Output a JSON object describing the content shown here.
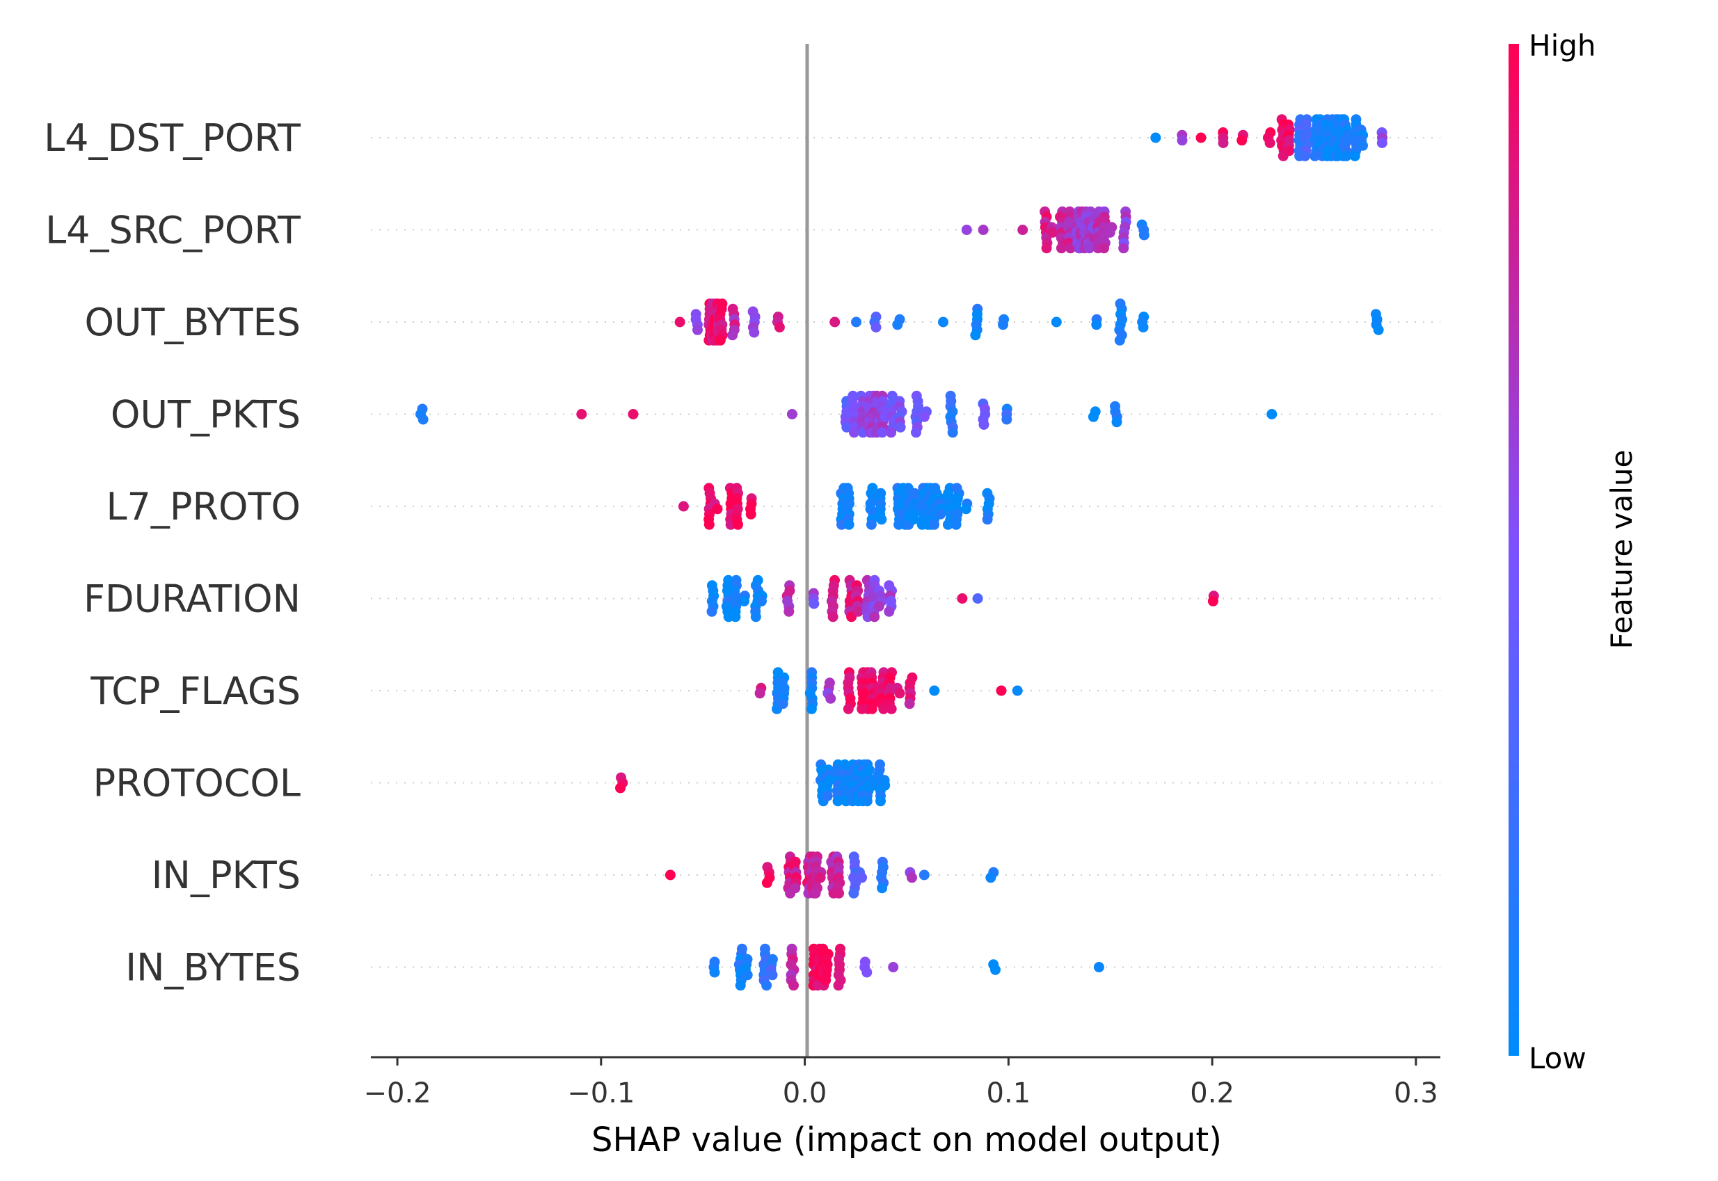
{
  "chart_data": {
    "type": "scatter",
    "subtype": "shap-beeswarm",
    "title": "",
    "xlabel": "SHAP value (impact on model output)",
    "ylabel": "",
    "xlim": [
      -0.213,
      0.312
    ],
    "xticks": [
      -0.2,
      -0.1,
      0.0,
      0.1,
      0.2,
      0.3
    ],
    "xtick_labels": [
      "−0.2",
      "−0.1",
      "0.0",
      "0.1",
      "0.2",
      "0.3"
    ],
    "zero_line": true,
    "colorbar": {
      "label": "Feature value",
      "high_label": "High",
      "low_label": "Low",
      "low_color": "#008bfb",
      "mid_color": "#7c52ff",
      "high_color": "#ff0052"
    },
    "features": [
      {
        "name": "L4_DST_PORT",
        "groups": [
          {
            "x": 0.172,
            "n": 1,
            "spread": 0.0,
            "fv": 0.05
          },
          {
            "x": 0.185,
            "n": 2,
            "spread": 0.001,
            "fv": 0.55
          },
          {
            "x": 0.195,
            "n": 1,
            "spread": 0.0,
            "fv": 0.95
          },
          {
            "x": 0.205,
            "n": 3,
            "spread": 0.002,
            "fv": 0.9
          },
          {
            "x": 0.215,
            "n": 2,
            "spread": 0.001,
            "fv": 0.95
          },
          {
            "x": 0.228,
            "n": 3,
            "spread": 0.002,
            "fv": 0.95
          },
          {
            "x": 0.236,
            "n": 14,
            "spread": 0.003,
            "fv": 0.95
          },
          {
            "x": 0.246,
            "n": 18,
            "spread": 0.003,
            "fv": 0.25
          },
          {
            "x": 0.255,
            "n": 30,
            "spread": 0.004,
            "fv": 0.05
          },
          {
            "x": 0.263,
            "n": 42,
            "spread": 0.004,
            "fv": 0.05
          },
          {
            "x": 0.272,
            "n": 12,
            "spread": 0.003,
            "fv": 0.05
          },
          {
            "x": 0.283,
            "n": 3,
            "spread": 0.002,
            "fv": 0.55
          }
        ]
      },
      {
        "name": "L4_SRC_PORT",
        "groups": [
          {
            "x": 0.08,
            "n": 1,
            "spread": 0.0,
            "fv": 0.7
          },
          {
            "x": 0.088,
            "n": 1,
            "spread": 0.0,
            "fv": 0.7
          },
          {
            "x": 0.107,
            "n": 1,
            "spread": 0.0,
            "fv": 0.8
          },
          {
            "x": 0.12,
            "n": 10,
            "spread": 0.003,
            "fv": 0.85
          },
          {
            "x": 0.13,
            "n": 20,
            "spread": 0.004,
            "fv": 0.75
          },
          {
            "x": 0.138,
            "n": 36,
            "spread": 0.004,
            "fv": 0.65
          },
          {
            "x": 0.147,
            "n": 18,
            "spread": 0.003,
            "fv": 0.7
          },
          {
            "x": 0.157,
            "n": 8,
            "spread": 0.003,
            "fv": 0.6
          },
          {
            "x": 0.166,
            "n": 3,
            "spread": 0.002,
            "fv": 0.2
          }
        ]
      },
      {
        "name": "OUT_BYTES",
        "groups": [
          {
            "x": -0.062,
            "n": 1,
            "spread": 0.0,
            "fv": 0.95
          },
          {
            "x": -0.053,
            "n": 4,
            "spread": 0.002,
            "fv": 0.55
          },
          {
            "x": -0.044,
            "n": 40,
            "spread": 0.003,
            "fv": 0.9
          },
          {
            "x": -0.035,
            "n": 6,
            "spread": 0.003,
            "fv": 0.75
          },
          {
            "x": -0.025,
            "n": 5,
            "spread": 0.003,
            "fv": 0.6
          },
          {
            "x": -0.013,
            "n": 3,
            "spread": 0.002,
            "fv": 0.85
          },
          {
            "x": 0.015,
            "n": 1,
            "spread": 0.0,
            "fv": 0.95
          },
          {
            "x": 0.025,
            "n": 1,
            "spread": 0.0,
            "fv": 0.05
          },
          {
            "x": 0.035,
            "n": 3,
            "spread": 0.002,
            "fv": 0.3
          },
          {
            "x": 0.046,
            "n": 2,
            "spread": 0.001,
            "fv": 0.05
          },
          {
            "x": 0.068,
            "n": 1,
            "spread": 0.0,
            "fv": 0.05
          },
          {
            "x": 0.084,
            "n": 6,
            "spread": 0.003,
            "fv": 0.05
          },
          {
            "x": 0.097,
            "n": 2,
            "spread": 0.001,
            "fv": 0.05
          },
          {
            "x": 0.124,
            "n": 1,
            "spread": 0.0,
            "fv": 0.05
          },
          {
            "x": 0.143,
            "n": 2,
            "spread": 0.001,
            "fv": 0.05
          },
          {
            "x": 0.155,
            "n": 8,
            "spread": 0.003,
            "fv": 0.05
          },
          {
            "x": 0.166,
            "n": 3,
            "spread": 0.002,
            "fv": 0.05
          },
          {
            "x": 0.281,
            "n": 4,
            "spread": 0.001,
            "fv": 0.05
          }
        ]
      },
      {
        "name": "OUT_PKTS",
        "groups": [
          {
            "x": -0.188,
            "n": 3,
            "spread": 0.002,
            "fv": 0.05
          },
          {
            "x": -0.11,
            "n": 1,
            "spread": 0.0,
            "fv": 0.95
          },
          {
            "x": -0.084,
            "n": 1,
            "spread": 0.0,
            "fv": 0.95
          },
          {
            "x": -0.006,
            "n": 1,
            "spread": 0.0,
            "fv": 0.65
          },
          {
            "x": 0.02,
            "n": 6,
            "spread": 0.003,
            "fv": 0.4
          },
          {
            "x": 0.028,
            "n": 22,
            "spread": 0.004,
            "fv": 0.55
          },
          {
            "x": 0.036,
            "n": 34,
            "spread": 0.004,
            "fv": 0.6
          },
          {
            "x": 0.045,
            "n": 14,
            "spread": 0.004,
            "fv": 0.5
          },
          {
            "x": 0.057,
            "n": 10,
            "spread": 0.004,
            "fv": 0.45
          },
          {
            "x": 0.072,
            "n": 8,
            "spread": 0.004,
            "fv": 0.2
          },
          {
            "x": 0.088,
            "n": 5,
            "spread": 0.003,
            "fv": 0.4
          },
          {
            "x": 0.099,
            "n": 3,
            "spread": 0.002,
            "fv": 0.2
          },
          {
            "x": 0.142,
            "n": 2,
            "spread": 0.001,
            "fv": 0.05
          },
          {
            "x": 0.153,
            "n": 4,
            "spread": 0.002,
            "fv": 0.05
          },
          {
            "x": 0.23,
            "n": 1,
            "spread": 0.0,
            "fv": 0.05
          }
        ]
      },
      {
        "name": "L7_PROTO",
        "groups": [
          {
            "x": -0.059,
            "n": 1,
            "spread": 0.0,
            "fv": 0.95
          },
          {
            "x": -0.045,
            "n": 10,
            "spread": 0.003,
            "fv": 0.95
          },
          {
            "x": -0.035,
            "n": 16,
            "spread": 0.003,
            "fv": 0.95
          },
          {
            "x": -0.026,
            "n": 4,
            "spread": 0.002,
            "fv": 0.95
          },
          {
            "x": 0.02,
            "n": 16,
            "spread": 0.003,
            "fv": 0.05
          },
          {
            "x": 0.035,
            "n": 14,
            "spread": 0.004,
            "fv": 0.05
          },
          {
            "x": 0.05,
            "n": 30,
            "spread": 0.004,
            "fv": 0.05
          },
          {
            "x": 0.062,
            "n": 36,
            "spread": 0.004,
            "fv": 0.05
          },
          {
            "x": 0.075,
            "n": 18,
            "spread": 0.004,
            "fv": 0.05
          },
          {
            "x": 0.09,
            "n": 6,
            "spread": 0.003,
            "fv": 0.05
          }
        ]
      },
      {
        "name": "FDURATION",
        "groups": [
          {
            "x": -0.045,
            "n": 6,
            "spread": 0.003,
            "fv": 0.05
          },
          {
            "x": -0.034,
            "n": 18,
            "spread": 0.004,
            "fv": 0.05
          },
          {
            "x": -0.022,
            "n": 10,
            "spread": 0.003,
            "fv": 0.05
          },
          {
            "x": -0.008,
            "n": 6,
            "spread": 0.003,
            "fv": 0.75
          },
          {
            "x": 0.005,
            "n": 3,
            "spread": 0.002,
            "fv": 0.55
          },
          {
            "x": 0.014,
            "n": 8,
            "spread": 0.003,
            "fv": 0.85
          },
          {
            "x": 0.024,
            "n": 14,
            "spread": 0.003,
            "fv": 0.85
          },
          {
            "x": 0.034,
            "n": 20,
            "spread": 0.003,
            "fv": 0.6
          },
          {
            "x": 0.042,
            "n": 6,
            "spread": 0.002,
            "fv": 0.6
          },
          {
            "x": 0.077,
            "n": 1,
            "spread": 0.0,
            "fv": 0.95
          },
          {
            "x": 0.085,
            "n": 1,
            "spread": 0.0,
            "fv": 0.4
          },
          {
            "x": 0.2,
            "n": 2,
            "spread": 0.001,
            "fv": 0.95
          }
        ]
      },
      {
        "name": "TCP_FLAGS",
        "groups": [
          {
            "x": -0.022,
            "n": 2,
            "spread": 0.001,
            "fv": 0.9
          },
          {
            "x": -0.012,
            "n": 14,
            "spread": 0.003,
            "fv": 0.05
          },
          {
            "x": 0.003,
            "n": 8,
            "spread": 0.003,
            "fv": 0.1
          },
          {
            "x": 0.012,
            "n": 4,
            "spread": 0.002,
            "fv": 0.6
          },
          {
            "x": 0.022,
            "n": 8,
            "spread": 0.003,
            "fv": 0.9
          },
          {
            "x": 0.032,
            "n": 26,
            "spread": 0.004,
            "fv": 0.95
          },
          {
            "x": 0.042,
            "n": 18,
            "spread": 0.004,
            "fv": 0.95
          },
          {
            "x": 0.052,
            "n": 6,
            "spread": 0.003,
            "fv": 0.85
          },
          {
            "x": 0.064,
            "n": 1,
            "spread": 0.0,
            "fv": 0.05
          },
          {
            "x": 0.097,
            "n": 1,
            "spread": 0.0,
            "fv": 0.95
          },
          {
            "x": 0.104,
            "n": 1,
            "spread": 0.0,
            "fv": 0.05
          }
        ]
      },
      {
        "name": "PROTOCOL",
        "groups": [
          {
            "x": -0.09,
            "n": 3,
            "spread": 0.004,
            "fv": 0.95
          },
          {
            "x": 0.01,
            "n": 14,
            "spread": 0.003,
            "fv": 0.05
          },
          {
            "x": 0.02,
            "n": 24,
            "spread": 0.004,
            "fv": 0.05
          },
          {
            "x": 0.03,
            "n": 26,
            "spread": 0.004,
            "fv": 0.05
          },
          {
            "x": 0.038,
            "n": 10,
            "spread": 0.003,
            "fv": 0.05
          }
        ]
      },
      {
        "name": "IN_PKTS",
        "groups": [
          {
            "x": -0.066,
            "n": 1,
            "spread": 0.0,
            "fv": 0.95
          },
          {
            "x": -0.018,
            "n": 4,
            "spread": 0.002,
            "fv": 0.95
          },
          {
            "x": -0.006,
            "n": 14,
            "spread": 0.003,
            "fv": 0.85
          },
          {
            "x": 0.005,
            "n": 26,
            "spread": 0.003,
            "fv": 0.8
          },
          {
            "x": 0.015,
            "n": 16,
            "spread": 0.003,
            "fv": 0.75
          },
          {
            "x": 0.026,
            "n": 10,
            "spread": 0.003,
            "fv": 0.35
          },
          {
            "x": 0.038,
            "n": 6,
            "spread": 0.003,
            "fv": 0.15
          },
          {
            "x": 0.052,
            "n": 2,
            "spread": 0.002,
            "fv": 0.6
          },
          {
            "x": 0.059,
            "n": 1,
            "spread": 0.0,
            "fv": 0.05
          },
          {
            "x": 0.092,
            "n": 2,
            "spread": 0.001,
            "fv": 0.05
          }
        ]
      },
      {
        "name": "IN_BYTES",
        "groups": [
          {
            "x": -0.044,
            "n": 3,
            "spread": 0.002,
            "fv": 0.05
          },
          {
            "x": -0.03,
            "n": 12,
            "spread": 0.003,
            "fv": 0.1
          },
          {
            "x": -0.018,
            "n": 12,
            "spread": 0.003,
            "fv": 0.2
          },
          {
            "x": -0.006,
            "n": 8,
            "spread": 0.003,
            "fv": 0.75
          },
          {
            "x": 0.008,
            "n": 30,
            "spread": 0.003,
            "fv": 0.95
          },
          {
            "x": 0.017,
            "n": 8,
            "spread": 0.003,
            "fv": 0.95
          },
          {
            "x": 0.03,
            "n": 3,
            "spread": 0.002,
            "fv": 0.5
          },
          {
            "x": 0.044,
            "n": 1,
            "spread": 0.0,
            "fv": 0.7
          },
          {
            "x": 0.093,
            "n": 2,
            "spread": 0.001,
            "fv": 0.05
          },
          {
            "x": 0.144,
            "n": 1,
            "spread": 0.0,
            "fv": 0.05
          }
        ]
      }
    ]
  }
}
